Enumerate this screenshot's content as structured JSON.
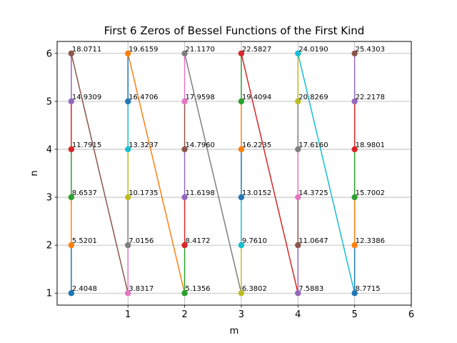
{
  "chart_data": {
    "type": "line",
    "title": "First 6 Zeros of Bessel Functions of the First Kind",
    "xlabel": "m",
    "ylabel": "n",
    "xlim": [
      -0.25,
      6
    ],
    "ylim": [
      0.75,
      6.25
    ],
    "xticks": [
      1,
      2,
      3,
      4,
      5,
      6
    ],
    "yticks": [
      1,
      2,
      3,
      4,
      5,
      6
    ],
    "grid": true,
    "palette": [
      "#1f77b4",
      "#ff7f0e",
      "#2ca02c",
      "#d62728",
      "#9467bd",
      "#8c564b",
      "#e377c2",
      "#7f7f7f",
      "#bcbd22",
      "#17becf"
    ],
    "zeros": [
      {
        "m": 0,
        "n": 1,
        "value": "2.4048"
      },
      {
        "m": 0,
        "n": 2,
        "value": "5.5201"
      },
      {
        "m": 0,
        "n": 3,
        "value": "8.6537"
      },
      {
        "m": 0,
        "n": 4,
        "value": "11.7915"
      },
      {
        "m": 0,
        "n": 5,
        "value": "14.9309"
      },
      {
        "m": 0,
        "n": 6,
        "value": "18.0711"
      },
      {
        "m": 1,
        "n": 1,
        "value": "3.8317"
      },
      {
        "m": 1,
        "n": 2,
        "value": "7.0156"
      },
      {
        "m": 1,
        "n": 3,
        "value": "10.1735"
      },
      {
        "m": 1,
        "n": 4,
        "value": "13.3237"
      },
      {
        "m": 1,
        "n": 5,
        "value": "16.4706"
      },
      {
        "m": 1,
        "n": 6,
        "value": "19.6159"
      },
      {
        "m": 2,
        "n": 1,
        "value": "5.1356"
      },
      {
        "m": 2,
        "n": 2,
        "value": "8.4172"
      },
      {
        "m": 2,
        "n": 3,
        "value": "11.6198"
      },
      {
        "m": 2,
        "n": 4,
        "value": "14.7960"
      },
      {
        "m": 2,
        "n": 5,
        "value": "17.9598"
      },
      {
        "m": 2,
        "n": 6,
        "value": "21.1170"
      },
      {
        "m": 3,
        "n": 1,
        "value": "6.3802"
      },
      {
        "m": 3,
        "n": 2,
        "value": "9.7610"
      },
      {
        "m": 3,
        "n": 3,
        "value": "13.0152"
      },
      {
        "m": 3,
        "n": 4,
        "value": "16.2235"
      },
      {
        "m": 3,
        "n": 5,
        "value": "19.4094"
      },
      {
        "m": 3,
        "n": 6,
        "value": "22.5827"
      },
      {
        "m": 4,
        "n": 1,
        "value": "7.5883"
      },
      {
        "m": 4,
        "n": 2,
        "value": "11.0647"
      },
      {
        "m": 4,
        "n": 3,
        "value": "14.3725"
      },
      {
        "m": 4,
        "n": 4,
        "value": "17.6160"
      },
      {
        "m": 4,
        "n": 5,
        "value": "20.8269"
      },
      {
        "m": 4,
        "n": 6,
        "value": "24.0190"
      },
      {
        "m": 5,
        "n": 1,
        "value": "8.7715"
      },
      {
        "m": 5,
        "n": 2,
        "value": "12.3386"
      },
      {
        "m": 5,
        "n": 3,
        "value": "15.7002"
      },
      {
        "m": 5,
        "n": 4,
        "value": "18.9801"
      },
      {
        "m": 5,
        "n": 5,
        "value": "22.2178"
      },
      {
        "m": 5,
        "n": 6,
        "value": "25.4303"
      }
    ]
  }
}
